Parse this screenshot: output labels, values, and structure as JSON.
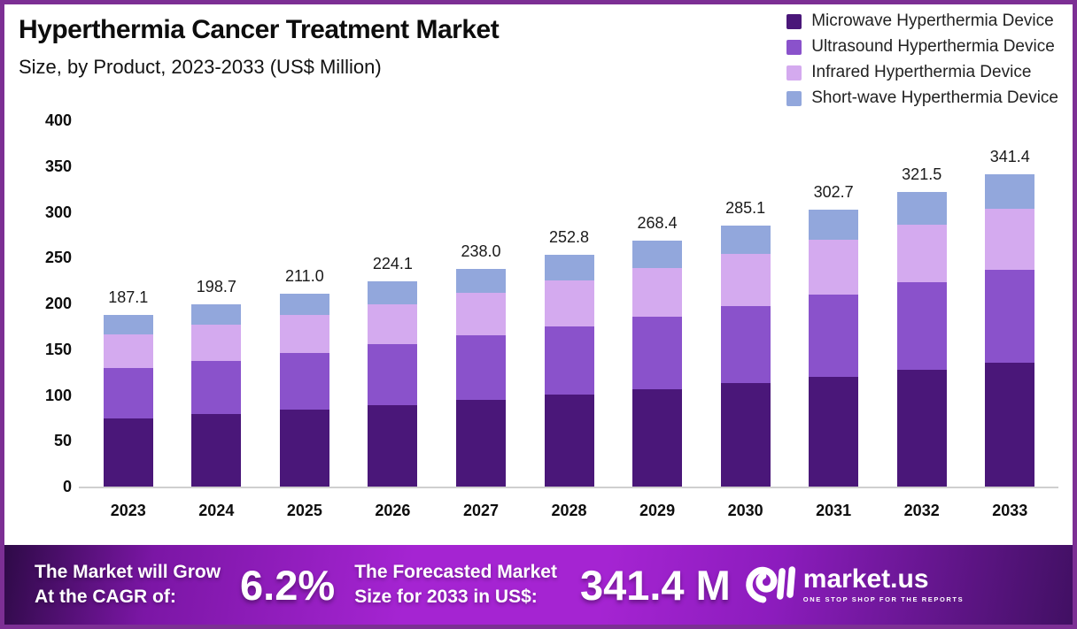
{
  "header": {
    "title": "Hyperthermia Cancer Treatment Market",
    "subtitle": "Size, by Product, 2023-2033 (US$ Million)"
  },
  "chart_data": {
    "type": "bar",
    "stacked": true,
    "title": "Hyperthermia Cancer Treatment Market",
    "subtitle": "Size, by Product, 2023-2033 (US$ Million)",
    "unit": "US$ Million",
    "categories": [
      "2023",
      "2024",
      "2025",
      "2026",
      "2027",
      "2028",
      "2029",
      "2030",
      "2031",
      "2032",
      "2033"
    ],
    "totals": [
      187.1,
      198.7,
      211.0,
      224.1,
      238.0,
      252.8,
      268.4,
      285.1,
      302.7,
      321.5,
      341.4
    ],
    "series": [
      {
        "name": "Microwave Hyperthermia Device",
        "color": "#4A1779",
        "values": [
          74.3,
          78.9,
          83.8,
          89.0,
          94.5,
          100.4,
          106.6,
          113.2,
          120.2,
          127.6,
          135.5
        ]
      },
      {
        "name": "Ultrasound Hyperthermia Device",
        "color": "#8A52CB",
        "values": [
          55.4,
          58.8,
          62.5,
          66.3,
          70.4,
          74.8,
          79.4,
          84.4,
          89.6,
          95.2,
          101.1
        ]
      },
      {
        "name": "Infrared Hyperthermia Device",
        "color": "#D4AAEF",
        "values": [
          36.9,
          39.1,
          41.6,
          44.1,
          46.9,
          49.8,
          52.9,
          56.2,
          59.6,
          63.3,
          67.3
        ]
      },
      {
        "name": "Short-wave Hyperthermia Device",
        "color": "#92A7DC",
        "values": [
          20.5,
          21.9,
          23.1,
          24.7,
          26.2,
          27.8,
          29.5,
          31.3,
          33.3,
          35.4,
          37.5
        ]
      }
    ],
    "ylim": [
      0,
      400
    ],
    "yticks": [
      400,
      350,
      300,
      250,
      200,
      150,
      100,
      50,
      0
    ],
    "grid": false,
    "legend_position": "top-right"
  },
  "banner": {
    "cagr_label_line1": "The Market will Grow",
    "cagr_label_line2": "At the CAGR of:",
    "cagr_value": "6.2%",
    "forecast_label_line1": "The Forecasted Market",
    "forecast_label_line2": "Size for 2033 in US$:",
    "forecast_value": "341.4 M",
    "logo_name": "market.us",
    "logo_tagline": "ONE STOP SHOP FOR THE REPORTS"
  },
  "colors": {
    "frame_border": "#7C2F94",
    "baseline": "#cfcfcf",
    "banner_gradient_start": "#2e0a47",
    "banner_gradient_mid": "#a524d2",
    "banner_gradient_end": "#411063"
  }
}
